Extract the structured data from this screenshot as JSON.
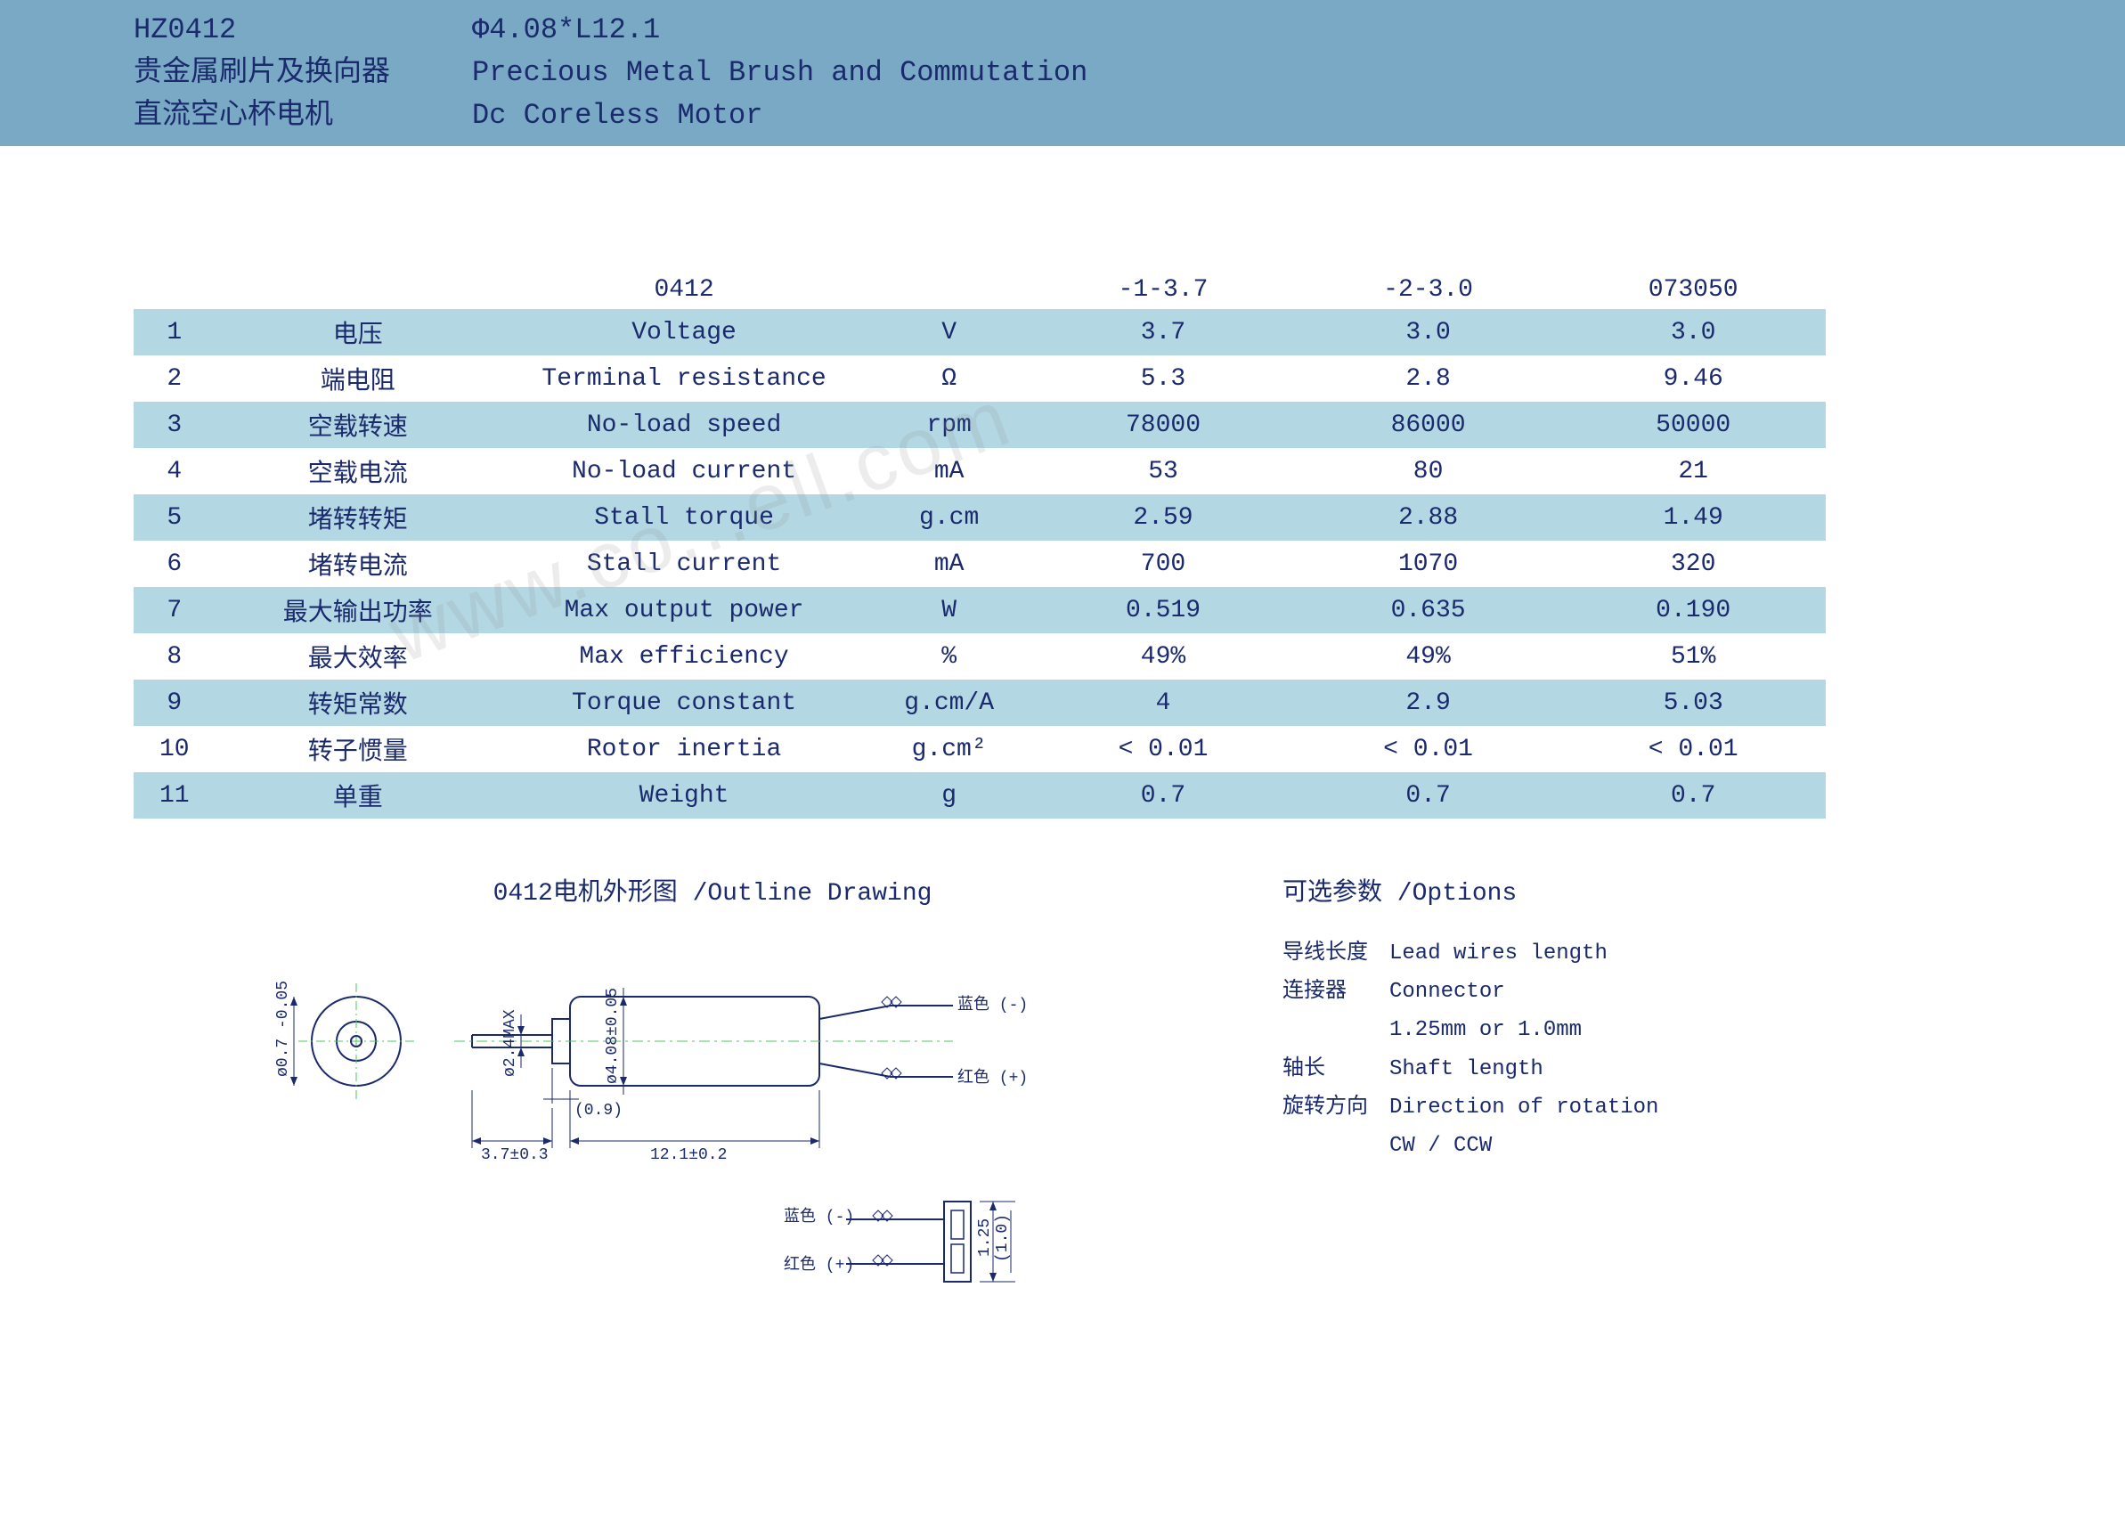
{
  "header": {
    "model": "HZ0412",
    "dims": "Φ4.08*L12.1",
    "line2_cn": "贵金属刷片及换向器",
    "line2_en": "Precious Metal Brush and Commutation",
    "line3_cn": "直流空心杯电机",
    "line3_en": "Dc Coreless Motor"
  },
  "table": {
    "head": {
      "c1": "",
      "c2": "0412",
      "c3": "",
      "c4": "-1-3.7",
      "c5": "-2-3.0",
      "c6": "073050"
    },
    "rows": [
      {
        "n": "1",
        "cn": "电压",
        "en": "Voltage",
        "unit": "V",
        "v1": "3.7",
        "v2": "3.0",
        "v3": "3.0"
      },
      {
        "n": "2",
        "cn": "端电阻",
        "en": "Terminal resistance",
        "unit": "Ω",
        "v1": "5.3",
        "v2": "2.8",
        "v3": "9.46"
      },
      {
        "n": "3",
        "cn": "空载转速",
        "en": "No-load speed",
        "unit": "rpm",
        "v1": "78000",
        "v2": "86000",
        "v3": "50000"
      },
      {
        "n": "4",
        "cn": "空载电流",
        "en": "No-load current",
        "unit": "mA",
        "v1": "53",
        "v2": "80",
        "v3": "21"
      },
      {
        "n": "5",
        "cn": "堵转转矩",
        "en": "Stall torque",
        "unit": "g.cm",
        "v1": "2.59",
        "v2": "2.88",
        "v3": "1.49"
      },
      {
        "n": "6",
        "cn": "堵转电流",
        "en": "Stall current",
        "unit": "mA",
        "v1": "700",
        "v2": "1070",
        "v3": "320"
      },
      {
        "n": "7",
        "cn": "最大输出功率",
        "en": "Max output power",
        "unit": "W",
        "v1": "0.519",
        "v2": "0.635",
        "v3": "0.190"
      },
      {
        "n": "8",
        "cn": "最大效率",
        "en": "Max efficiency",
        "unit": "%",
        "v1": "49%",
        "v2": "49%",
        "v3": "51%"
      },
      {
        "n": "9",
        "cn": "转矩常数",
        "en": "Torque constant",
        "unit": "g.cm/A",
        "v1": "4",
        "v2": "2.9",
        "v3": "5.03"
      },
      {
        "n": "10",
        "cn": "转子惯量",
        "en": "Rotor inertia",
        "unit": "g.cm²",
        "v1": "< 0.01",
        "v2": "< 0.01",
        "v3": "< 0.01"
      },
      {
        "n": "11",
        "cn": "单重",
        "en": "Weight",
        "unit": "g",
        "v1": "0.7",
        "v2": "0.7",
        "v3": "0.7"
      }
    ],
    "alt_color": "#b3d7e3"
  },
  "diagram": {
    "title": "0412电机外形图 /Outline Drawing",
    "labels": {
      "front_diam": "ø0.7 -0.05",
      "shaft_diam": "ø2.4MAX",
      "body_diam": "ø4.08±0.05",
      "shaft_len": "3.7±0.3",
      "inset": "(0.9)",
      "body_len": "12.1±0.2",
      "blue": "蓝色 (-)",
      "red": "红色 (+)",
      "conn_125": "1.25",
      "conn_10": "(1.0)"
    }
  },
  "options": {
    "title": "可选参数 /Options",
    "items": [
      {
        "cn": "导线长度",
        "en": "Lead wires length"
      },
      {
        "cn": "连接器",
        "en": "Connector",
        "sub": "1.25mm or 1.0mm"
      },
      {
        "cn": "轴长",
        "en": "Shaft length"
      },
      {
        "cn": "旋转方向",
        "en": "Direction of rotation",
        "sub": "CW / CCW"
      }
    ]
  },
  "watermark": "www.co...ell.com"
}
